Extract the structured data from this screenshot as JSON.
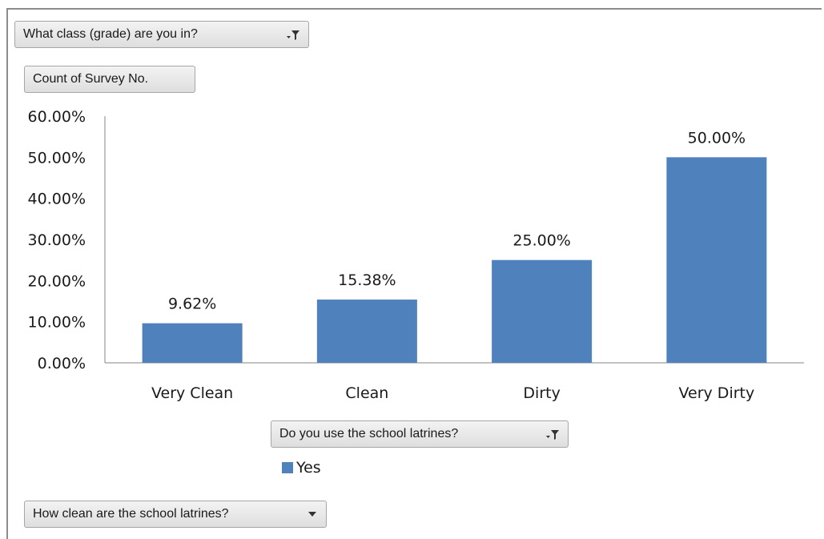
{
  "filters": {
    "report_filter": {
      "label": "What class (grade) are you in?",
      "icon": "filter-dropdown-icon"
    },
    "value_field": {
      "label": "Count of Survey No."
    },
    "legend_field": {
      "label": "Do you use the school latrines?",
      "icon": "filter-dropdown-icon"
    },
    "axis_field": {
      "label": "How clean are the school latrines?",
      "icon": "dropdown-arrow-icon"
    }
  },
  "colors": {
    "bar": "#4f81bd",
    "axis": "#868686"
  },
  "chart_data": {
    "type": "bar",
    "categories": [
      "Very Clean",
      "Clean",
      "Dirty",
      "Very Dirty"
    ],
    "series": [
      {
        "name": "Yes",
        "values": [
          9.62,
          15.38,
          25.0,
          50.0
        ]
      }
    ],
    "data_labels": [
      "9.62%",
      "15.38%",
      "25.00%",
      "50.00%"
    ],
    "yticks": [
      "0.00%",
      "10.00%",
      "20.00%",
      "30.00%",
      "40.00%",
      "50.00%",
      "60.00%"
    ],
    "ylim": [
      0,
      60
    ],
    "ytick_step": 10,
    "grid": false,
    "legend_position": "bottom"
  }
}
